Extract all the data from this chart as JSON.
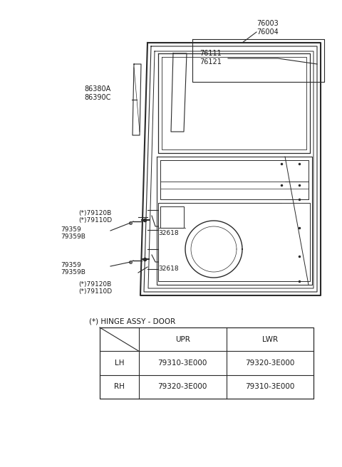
{
  "bg_color": "#ffffff",
  "parts_labels": {
    "76003_76004": "76003\n76004",
    "76111_76121": "76111\n76121",
    "86380A_86390C": "86380A\n86390C",
    "upper_79120B": "(*)79120B\n(*)79110D",
    "upper_79359": "79359\n79359B",
    "upper_32618": "32618",
    "lower_79359": "79359\n79359B",
    "lower_32618": "32618",
    "lower_79120B": "(*)79120B\n(*)79110D"
  },
  "table": {
    "title": "(*) HINGE ASSY - DOOR",
    "headers": [
      "",
      "UPR",
      "LWR"
    ],
    "rows": [
      [
        "LH",
        "79310-3E000",
        "79320-3E000"
      ],
      [
        "RH",
        "79320-3E000",
        "79310-3E000"
      ]
    ]
  },
  "line_color": "#2a2a2a",
  "text_color": "#1a1a1a",
  "font_size": 6.5,
  "table_font_size": 7.5
}
